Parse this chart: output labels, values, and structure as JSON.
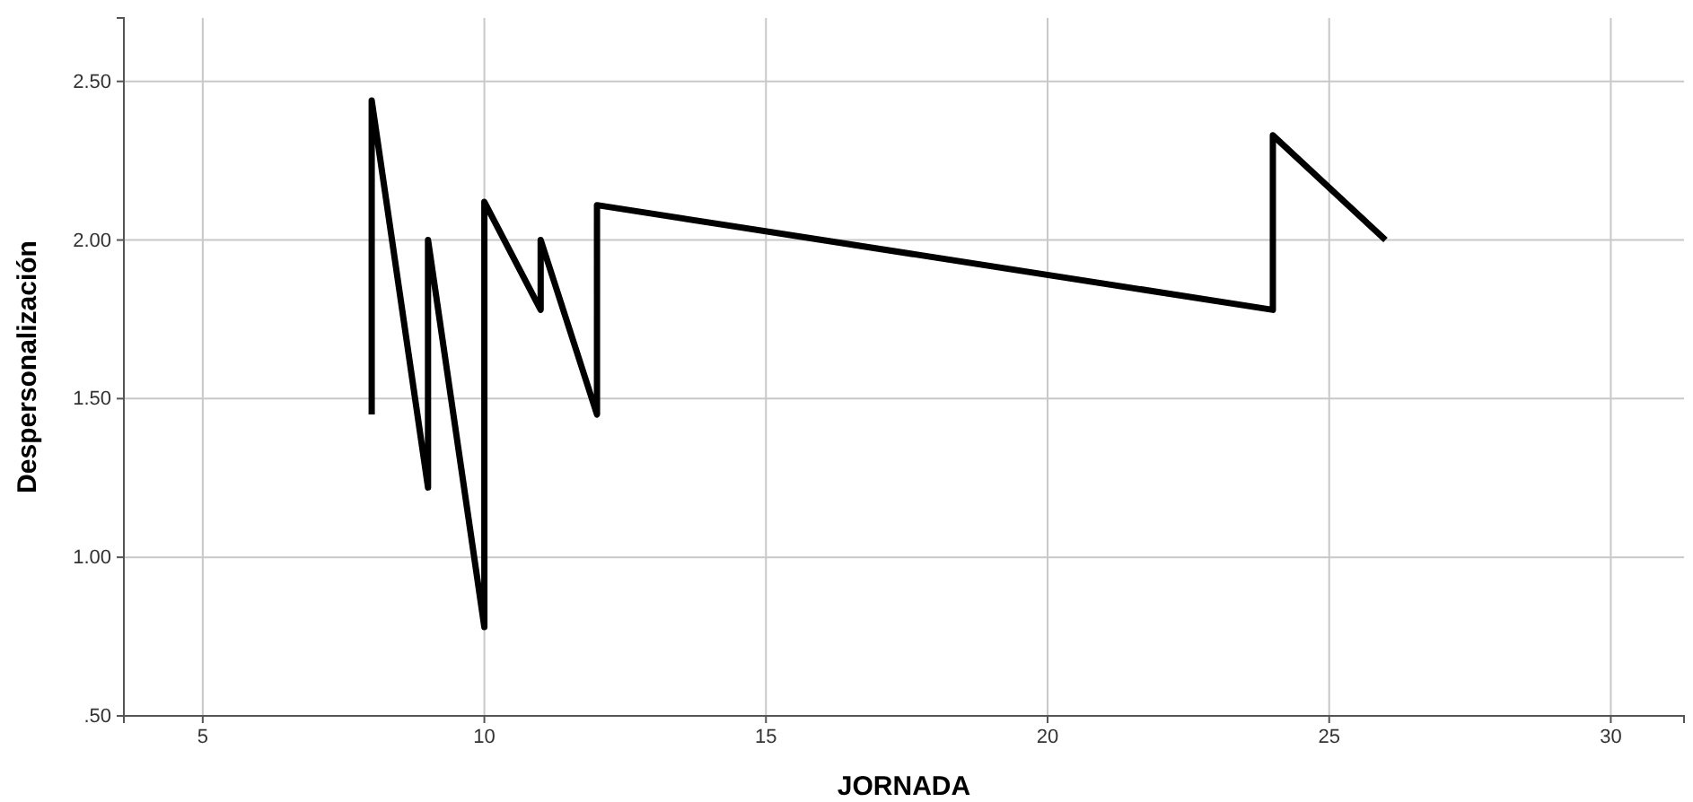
{
  "chart_data": {
    "type": "line",
    "xlabel": "JORNADA",
    "ylabel": "Despersonalización",
    "x": [
      8,
      8,
      9,
      9,
      10,
      10,
      11,
      11,
      12,
      12,
      24,
      24,
      26
    ],
    "series": [
      {
        "color": "#000000",
        "values": [
          1.45,
          2.44,
          1.22,
          2.0,
          0.78,
          2.12,
          1.78,
          2.0,
          1.45,
          2.11,
          1.78,
          2.33,
          2.0
        ]
      }
    ],
    "xlim": [
      3.6,
      31.3
    ],
    "xticks": [
      5,
      10,
      15,
      20,
      25,
      30
    ],
    "ylim": [
      0.5,
      2.7
    ],
    "yticks": [
      {
        "value": 0.5,
        "label": ".50"
      },
      {
        "value": 1,
        "label": "1.00"
      },
      {
        "value": 1.5,
        "label": "1.50"
      },
      {
        "value": 2,
        "label": "2.00"
      },
      {
        "value": 2.5,
        "label": "2.50"
      }
    ],
    "grid": true,
    "marker": "none",
    "line_style": "solid"
  }
}
